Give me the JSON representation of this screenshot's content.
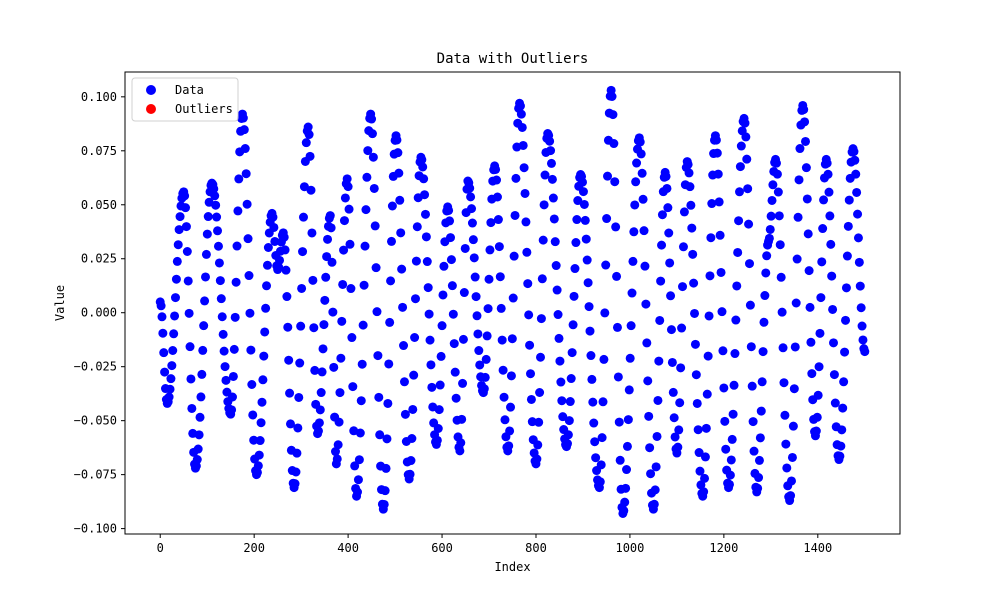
{
  "chart_data": {
    "type": "scatter",
    "title": "Data with Outliers",
    "xlabel": "Index",
    "ylabel": "Value",
    "xlim": [
      -75,
      1575
    ],
    "ylim": [
      -0.1025,
      0.1115
    ],
    "xticks": [
      0,
      200,
      400,
      600,
      800,
      1000,
      1200,
      1400
    ],
    "yticks": [
      -0.1,
      -0.075,
      -0.05,
      -0.025,
      0.0,
      0.025,
      0.05,
      0.075,
      0.1
    ],
    "xtick_labels": [
      "0",
      "200",
      "400",
      "600",
      "800",
      "1000",
      "1200",
      "1400"
    ],
    "ytick_labels": [
      "−0.100",
      "−0.075",
      "−0.050",
      "−0.025",
      "0.000",
      "0.025",
      "0.050",
      "0.075",
      "0.100"
    ],
    "legend_position": "upper-left",
    "series": [
      {
        "name": "Data",
        "color": "#0000ff",
        "cycles": [
          {
            "x_start": 0,
            "x_end": 15,
            "y_start": 0.005,
            "y_end": -0.042
          },
          {
            "x_start": 15,
            "x_end": 50,
            "y_start": -0.042,
            "y_end": 0.056
          },
          {
            "x_start": 50,
            "x_end": 75,
            "y_start": 0.056,
            "y_end": -0.072
          },
          {
            "x_start": 75,
            "x_end": 110,
            "y_start": -0.072,
            "y_end": 0.06
          },
          {
            "x_start": 110,
            "x_end": 150,
            "y_start": 0.06,
            "y_end": -0.047
          },
          {
            "x_start": 150,
            "x_end": 175,
            "y_start": -0.047,
            "y_end": 0.092
          },
          {
            "x_start": 175,
            "x_end": 205,
            "y_start": 0.092,
            "y_end": -0.075
          },
          {
            "x_start": 205,
            "x_end": 238,
            "y_start": -0.075,
            "y_end": 0.046
          },
          {
            "x_start": 238,
            "x_end": 250,
            "y_start": 0.046,
            "y_end": 0.02
          },
          {
            "x_start": 250,
            "x_end": 262,
            "y_start": 0.02,
            "y_end": 0.037
          },
          {
            "x_start": 262,
            "x_end": 285,
            "y_start": 0.037,
            "y_end": -0.081
          },
          {
            "x_start": 285,
            "x_end": 315,
            "y_start": -0.081,
            "y_end": 0.086
          },
          {
            "x_start": 315,
            "x_end": 335,
            "y_start": 0.086,
            "y_end": -0.056
          },
          {
            "x_start": 335,
            "x_end": 362,
            "y_start": -0.056,
            "y_end": 0.045
          },
          {
            "x_start": 362,
            "x_end": 375,
            "y_start": 0.045,
            "y_end": -0.07
          },
          {
            "x_start": 375,
            "x_end": 398,
            "y_start": -0.07,
            "y_end": 0.062
          },
          {
            "x_start": 398,
            "x_end": 418,
            "y_start": 0.062,
            "y_end": -0.085
          },
          {
            "x_start": 418,
            "x_end": 448,
            "y_start": -0.085,
            "y_end": 0.092
          },
          {
            "x_start": 448,
            "x_end": 475,
            "y_start": 0.092,
            "y_end": -0.091
          },
          {
            "x_start": 475,
            "x_end": 502,
            "y_start": -0.091,
            "y_end": 0.082
          },
          {
            "x_start": 502,
            "x_end": 530,
            "y_start": 0.082,
            "y_end": -0.077
          },
          {
            "x_start": 530,
            "x_end": 555,
            "y_start": -0.077,
            "y_end": 0.072
          },
          {
            "x_start": 555,
            "x_end": 588,
            "y_start": 0.072,
            "y_end": -0.061
          },
          {
            "x_start": 588,
            "x_end": 612,
            "y_start": -0.061,
            "y_end": 0.049
          },
          {
            "x_start": 612,
            "x_end": 638,
            "y_start": 0.049,
            "y_end": -0.064
          },
          {
            "x_start": 638,
            "x_end": 655,
            "y_start": -0.064,
            "y_end": 0.061
          },
          {
            "x_start": 655,
            "x_end": 688,
            "y_start": 0.061,
            "y_end": -0.037
          },
          {
            "x_start": 688,
            "x_end": 712,
            "y_start": -0.037,
            "y_end": 0.068
          },
          {
            "x_start": 712,
            "x_end": 740,
            "y_start": 0.068,
            "y_end": -0.064
          },
          {
            "x_start": 740,
            "x_end": 765,
            "y_start": -0.064,
            "y_end": 0.097
          },
          {
            "x_start": 765,
            "x_end": 800,
            "y_start": 0.097,
            "y_end": -0.07
          },
          {
            "x_start": 800,
            "x_end": 825,
            "y_start": -0.07,
            "y_end": 0.083
          },
          {
            "x_start": 825,
            "x_end": 865,
            "y_start": 0.083,
            "y_end": -0.062
          },
          {
            "x_start": 865,
            "x_end": 895,
            "y_start": -0.062,
            "y_end": 0.064
          },
          {
            "x_start": 895,
            "x_end": 935,
            "y_start": 0.064,
            "y_end": -0.081
          },
          {
            "x_start": 935,
            "x_end": 960,
            "y_start": -0.081,
            "y_end": 0.103
          },
          {
            "x_start": 960,
            "x_end": 985,
            "y_start": 0.103,
            "y_end": -0.093
          },
          {
            "x_start": 985,
            "x_end": 1020,
            "y_start": -0.093,
            "y_end": 0.081
          },
          {
            "x_start": 1020,
            "x_end": 1050,
            "y_start": 0.081,
            "y_end": -0.091
          },
          {
            "x_start": 1050,
            "x_end": 1075,
            "y_start": -0.091,
            "y_end": 0.065
          },
          {
            "x_start": 1075,
            "x_end": 1100,
            "y_start": 0.065,
            "y_end": -0.065
          },
          {
            "x_start": 1100,
            "x_end": 1122,
            "y_start": -0.065,
            "y_end": 0.07
          },
          {
            "x_start": 1122,
            "x_end": 1155,
            "y_start": 0.07,
            "y_end": -0.085
          },
          {
            "x_start": 1155,
            "x_end": 1182,
            "y_start": -0.085,
            "y_end": 0.082
          },
          {
            "x_start": 1182,
            "x_end": 1210,
            "y_start": 0.082,
            "y_end": -0.081
          },
          {
            "x_start": 1210,
            "x_end": 1243,
            "y_start": -0.081,
            "y_end": 0.09
          },
          {
            "x_start": 1243,
            "x_end": 1270,
            "y_start": 0.09,
            "y_end": -0.083
          },
          {
            "x_start": 1270,
            "x_end": 1295,
            "y_start": -0.083,
            "y_end": 0.033
          },
          {
            "x_start": 1295,
            "x_end": 1310,
            "y_start": 0.033,
            "y_end": 0.071
          },
          {
            "x_start": 1310,
            "x_end": 1340,
            "y_start": 0.071,
            "y_end": -0.087
          },
          {
            "x_start": 1340,
            "x_end": 1368,
            "y_start": -0.087,
            "y_end": 0.096
          },
          {
            "x_start": 1368,
            "x_end": 1395,
            "y_start": 0.096,
            "y_end": -0.057
          },
          {
            "x_start": 1395,
            "x_end": 1418,
            "y_start": -0.057,
            "y_end": 0.071
          },
          {
            "x_start": 1418,
            "x_end": 1445,
            "y_start": 0.071,
            "y_end": -0.068
          },
          {
            "x_start": 1445,
            "x_end": 1475,
            "y_start": -0.068,
            "y_end": 0.076
          },
          {
            "x_start": 1475,
            "x_end": 1500,
            "y_start": 0.076,
            "y_end": -0.018
          }
        ],
        "points_per_unit": 0.5
      },
      {
        "name": "Outliers",
        "color": "#ff0000",
        "points": []
      }
    ]
  }
}
